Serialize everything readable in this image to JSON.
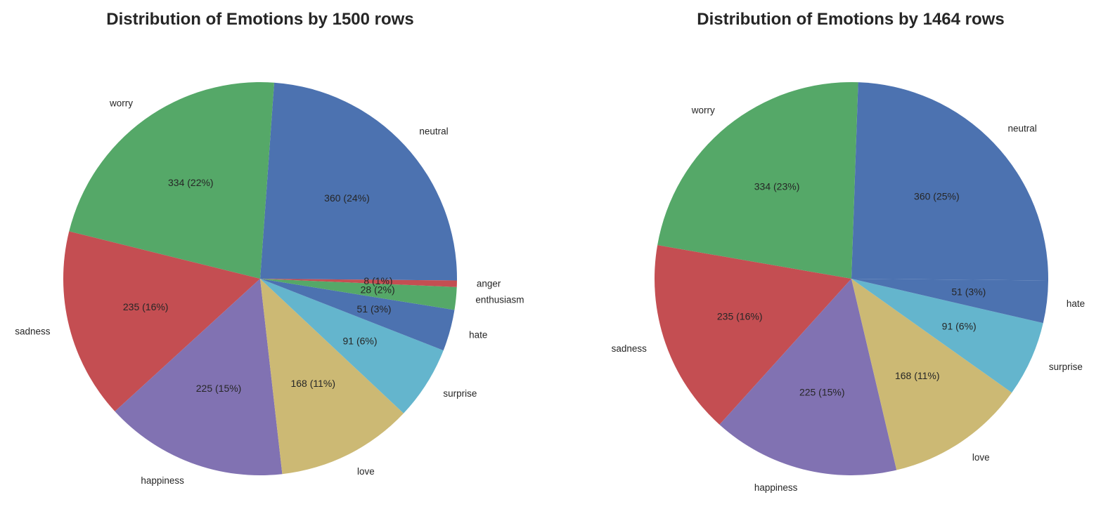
{
  "chart_data": [
    {
      "type": "pie",
      "title": "Distribution of Emotions by 1500 rows",
      "slices": [
        {
          "label": "neutral",
          "value": 360,
          "pct_label": "360 (24%)",
          "color": "#4c72b0"
        },
        {
          "label": "worry",
          "value": 334,
          "pct_label": "334 (22%)",
          "color": "#55a868"
        },
        {
          "label": "sadness",
          "value": 235,
          "pct_label": "235 (16%)",
          "color": "#c44e52"
        },
        {
          "label": "happiness",
          "value": 225,
          "pct_label": "225 (15%)",
          "color": "#8172b2"
        },
        {
          "label": "love",
          "value": 168,
          "pct_label": "168 (11%)",
          "color": "#ccb974"
        },
        {
          "label": "surprise",
          "value": 91,
          "pct_label": "91 (6%)",
          "color": "#64b5cd"
        },
        {
          "label": "hate",
          "value": 51,
          "pct_label": "51 (3%)",
          "color": "#4c72b0"
        },
        {
          "label": "enthusiasm",
          "value": 28,
          "pct_label": "28 (2%)",
          "color": "#55a868"
        },
        {
          "label": "anger",
          "value": 8,
          "pct_label": "8 (1%)",
          "color": "#c44e52"
        }
      ]
    },
    {
      "type": "pie",
      "title": "Distribution of Emotions by 1464 rows",
      "slices": [
        {
          "label": "neutral",
          "value": 360,
          "pct_label": "360 (25%)",
          "color": "#4c72b0"
        },
        {
          "label": "worry",
          "value": 334,
          "pct_label": "334 (23%)",
          "color": "#55a868"
        },
        {
          "label": "sadness",
          "value": 235,
          "pct_label": "235 (16%)",
          "color": "#c44e52"
        },
        {
          "label": "happiness",
          "value": 225,
          "pct_label": "225 (15%)",
          "color": "#8172b2"
        },
        {
          "label": "love",
          "value": 168,
          "pct_label": "168 (11%)",
          "color": "#ccb974"
        },
        {
          "label": "surprise",
          "value": 91,
          "pct_label": "91 (6%)",
          "color": "#64b5cd"
        },
        {
          "label": "hate",
          "value": 51,
          "pct_label": "51 (3%)",
          "color": "#4c72b0"
        }
      ]
    }
  ]
}
